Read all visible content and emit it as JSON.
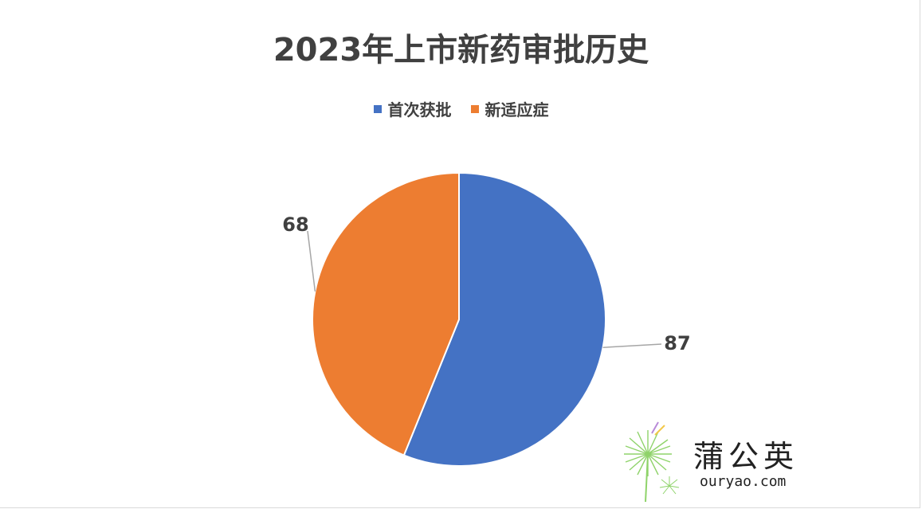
{
  "chart_data": {
    "type": "pie",
    "title": "2023年上市新药审批历史",
    "categories": [
      "首次获批",
      "新适应症"
    ],
    "values": [
      87,
      68
    ],
    "colors": [
      "#4472c4",
      "#ed7d31"
    ],
    "legend_position": "top",
    "start_angle": "12 o'clock, clockwise"
  },
  "watermark": {
    "name": "蒲公英",
    "url": "ouryao.com",
    "icon": "dandelion-logo-icon"
  }
}
